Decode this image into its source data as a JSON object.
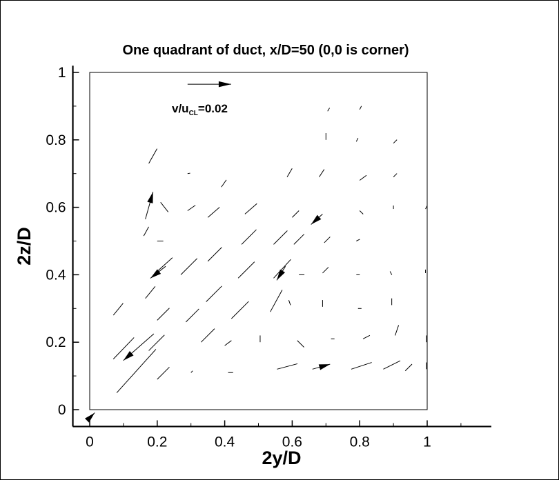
{
  "chart_data": {
    "type": "vector",
    "title": "One quadrant of duct, x/D=50 (0,0 is corner)",
    "xlabel": "2y/D",
    "ylabel": "2z/D",
    "xlim": [
      -0.05,
      1.19
    ],
    "ylim": [
      -0.05,
      1.02
    ],
    "frame_box": [
      0,
      1,
      0,
      1
    ],
    "x_ticks": [
      0,
      0.2,
      0.4,
      0.6,
      0.8,
      1
    ],
    "x_tick_labels": [
      "0",
      "0.2",
      "0.4",
      "0.6",
      "0.8",
      "1"
    ],
    "y_ticks": [
      0,
      0.2,
      0.4,
      0.6,
      0.8,
      1
    ],
    "y_tick_labels": [
      "0",
      "0.2",
      "0.4",
      "0.6",
      "0.8",
      "1"
    ],
    "reference_vector": {
      "label": "v/u",
      "label_sub": "CL",
      "label_suffix": "=0.02",
      "magnitude": 0.02,
      "x": 0.29,
      "y": 0.965
    },
    "scale_units_per_velocity": 6.45,
    "vectors": [
      {
        "x": 0.002,
        "y": -0.022,
        "u": 0.002,
        "w": 0.002,
        "head": true
      },
      {
        "x": 0.07,
        "y": 0.15,
        "u": 0.0095,
        "w": 0.0099,
        "head": false
      },
      {
        "x": 0.07,
        "y": 0.28,
        "u": 0.0045,
        "w": 0.0055,
        "head": false
      },
      {
        "x": 0.08,
        "y": 0.05,
        "u": 0.018,
        "w": 0.02,
        "head": false
      },
      {
        "x": 0.165,
        "y": 0.33,
        "u": 0.0045,
        "w": 0.0055,
        "head": false
      },
      {
        "x": 0.16,
        "y": 0.515,
        "u": 0.0023,
        "w": 0.0042,
        "head": false
      },
      {
        "x": 0.165,
        "y": 0.565,
        "u": 0.0035,
        "w": 0.0125,
        "head": true
      },
      {
        "x": 0.175,
        "y": 0.73,
        "u": 0.0038,
        "w": 0.0068,
        "head": false
      },
      {
        "x": 0.175,
        "y": 0.175,
        "u": 0.0072,
        "w": 0.0072,
        "head": false
      },
      {
        "x": 0.19,
        "y": 0.225,
        "u": -0.014,
        "w": -0.0123,
        "head": true
      },
      {
        "x": 0.2,
        "y": 0.09,
        "u": 0.0056,
        "w": 0.0056,
        "head": false
      },
      {
        "x": 0.2,
        "y": 0.41,
        "u": 0.007,
        "w": 0.0063,
        "head": false
      },
      {
        "x": 0.2,
        "y": 0.265,
        "u": 0.0056,
        "w": 0.0056,
        "head": false
      },
      {
        "x": 0.2,
        "y": 0.5,
        "u": 0.0028,
        "w": 0.0,
        "head": false
      },
      {
        "x": 0.21,
        "y": 0.615,
        "u": 0.0035,
        "w": -0.0045,
        "head": false
      },
      {
        "x": 0.225,
        "y": 0.425,
        "u": -0.007,
        "w": -0.0055,
        "head": true
      },
      {
        "x": 0.27,
        "y": 0.4,
        "u": 0.0075,
        "w": 0.0075,
        "head": false
      },
      {
        "x": 0.285,
        "y": 0.26,
        "u": 0.006,
        "w": 0.006,
        "head": false
      },
      {
        "x": 0.29,
        "y": 0.7,
        "u": 0.0012,
        "w": 0.0002,
        "head": false
      },
      {
        "x": 0.29,
        "y": 0.59,
        "u": 0.0036,
        "w": 0.0025,
        "head": false
      },
      {
        "x": 0.3,
        "y": 0.11,
        "u": 0.0008,
        "w": 0.0008,
        "head": false
      },
      {
        "x": 0.33,
        "y": 0.2,
        "u": 0.0062,
        "w": 0.0062,
        "head": false
      },
      {
        "x": 0.345,
        "y": 0.32,
        "u": 0.0072,
        "w": 0.0072,
        "head": false
      },
      {
        "x": 0.35,
        "y": 0.44,
        "u": 0.0064,
        "w": 0.0064,
        "head": false
      },
      {
        "x": 0.35,
        "y": 0.57,
        "u": 0.0054,
        "w": 0.0047,
        "head": false
      },
      {
        "x": 0.39,
        "y": 0.66,
        "u": 0.0023,
        "w": 0.0033,
        "head": false
      },
      {
        "x": 0.41,
        "y": 0.11,
        "u": 0.0023,
        "w": 0.0,
        "head": false
      },
      {
        "x": 0.4,
        "y": 0.19,
        "u": 0.0031,
        "w": 0.0023,
        "head": false
      },
      {
        "x": 0.44,
        "y": 0.39,
        "u": 0.0075,
        "w": 0.0075,
        "head": false
      },
      {
        "x": 0.42,
        "y": 0.27,
        "u": 0.0079,
        "w": 0.0079,
        "head": false
      },
      {
        "x": 0.45,
        "y": 0.49,
        "u": 0.0068,
        "w": 0.0068,
        "head": false
      },
      {
        "x": 0.46,
        "y": 0.58,
        "u": 0.0055,
        "w": 0.0048,
        "head": false
      },
      {
        "x": 0.505,
        "y": 0.2,
        "u": 0.0,
        "w": 0.0031,
        "head": false
      },
      {
        "x": 0.535,
        "y": 0.29,
        "u": 0.0055,
        "w": 0.0101,
        "head": false
      },
      {
        "x": 0.545,
        "y": 0.39,
        "u": 0.0079,
        "w": 0.0086,
        "head": false
      },
      {
        "x": 0.545,
        "y": 0.49,
        "u": 0.0063,
        "w": 0.0063,
        "head": false
      },
      {
        "x": 0.555,
        "y": 0.12,
        "u": 0.0094,
        "w": 0.0025,
        "head": false
      },
      {
        "x": 0.58,
        "y": 0.425,
        "u": -0.004,
        "w": -0.0064,
        "head": true
      },
      {
        "x": 0.585,
        "y": 0.69,
        "u": 0.0023,
        "w": 0.0039,
        "head": false
      },
      {
        "x": 0.6,
        "y": 0.57,
        "u": 0.0031,
        "w": 0.0031,
        "head": false
      },
      {
        "x": 0.605,
        "y": 0.49,
        "u": 0.0047,
        "w": 0.0047,
        "head": false
      },
      {
        "x": 0.62,
        "y": 0.4,
        "u": 0.0025,
        "w": 0.0,
        "head": false
      },
      {
        "x": 0.595,
        "y": 0.31,
        "u": -0.0008,
        "w": 0.0023,
        "head": false
      },
      {
        "x": 0.615,
        "y": 0.205,
        "u": 0.0031,
        "w": -0.0031,
        "head": false
      },
      {
        "x": 0.66,
        "y": 0.12,
        "u": 0.0081,
        "w": 0.0023,
        "head": true
      },
      {
        "x": 0.69,
        "y": 0.58,
        "u": -0.0053,
        "w": -0.0048,
        "head": true
      },
      {
        "x": 0.68,
        "y": 0.69,
        "u": 0.0023,
        "w": 0.0035,
        "head": false
      },
      {
        "x": 0.69,
        "y": 0.405,
        "u": 0.0027,
        "w": 0.0027,
        "head": false
      },
      {
        "x": 0.695,
        "y": 0.495,
        "u": 0.0027,
        "w": 0.0027,
        "head": false
      },
      {
        "x": 0.69,
        "y": 0.305,
        "u": 0.0,
        "w": 0.0031,
        "head": false
      },
      {
        "x": 0.7,
        "y": 0.8,
        "u": 0.0,
        "w": 0.0031,
        "head": false
      },
      {
        "x": 0.705,
        "y": 0.885,
        "u": 0.0009,
        "w": 0.0015,
        "head": false
      },
      {
        "x": 0.715,
        "y": 0.21,
        "u": 0.0016,
        "w": 0.0,
        "head": false
      },
      {
        "x": 0.775,
        "y": 0.12,
        "u": 0.0094,
        "w": 0.0031,
        "head": false
      },
      {
        "x": 0.79,
        "y": 0.5,
        "u": 0.0016,
        "w": 0.0008,
        "head": false
      },
      {
        "x": 0.79,
        "y": 0.4,
        "u": 0.0016,
        "w": 0.0,
        "head": false
      },
      {
        "x": 0.795,
        "y": 0.3,
        "u": 0.0016,
        "w": 0.0,
        "head": false
      },
      {
        "x": 0.8,
        "y": 0.59,
        "u": 0.0016,
        "w": -0.0016,
        "head": false
      },
      {
        "x": 0.8,
        "y": 0.68,
        "u": 0.0031,
        "w": 0.0023,
        "head": false
      },
      {
        "x": 0.79,
        "y": 0.795,
        "u": 0.0008,
        "w": 0.0016,
        "head": false
      },
      {
        "x": 0.8,
        "y": 0.89,
        "u": 0.0008,
        "w": 0.0016,
        "head": false
      },
      {
        "x": 0.81,
        "y": 0.21,
        "u": 0.0031,
        "w": 0.0016,
        "head": false
      },
      {
        "x": 0.87,
        "y": 0.12,
        "u": 0.0078,
        "w": 0.0039,
        "head": false
      },
      {
        "x": 0.89,
        "y": 0.41,
        "u": 0.0008,
        "w": -0.0016,
        "head": false
      },
      {
        "x": 0.895,
        "y": 0.31,
        "u": 0.0,
        "w": 0.0031,
        "head": false
      },
      {
        "x": 0.9,
        "y": 0.595,
        "u": 0.0,
        "w": 0.0016,
        "head": false
      },
      {
        "x": 0.9,
        "y": 0.69,
        "u": 0.0016,
        "w": 0.0016,
        "head": false
      },
      {
        "x": 0.9,
        "y": 0.79,
        "u": 0.0016,
        "w": 0.0016,
        "head": false
      },
      {
        "x": 0.905,
        "y": 0.22,
        "u": 0.0016,
        "w": 0.0047,
        "head": false
      },
      {
        "x": 0.935,
        "y": 0.115,
        "u": 0.0031,
        "w": 0.0031,
        "head": false
      },
      {
        "x": 0.995,
        "y": 0.595,
        "u": 0.0008,
        "w": 0.0016,
        "head": false
      },
      {
        "x": 0.995,
        "y": 0.405,
        "u": 0.0,
        "w": 0.0016,
        "head": false
      },
      {
        "x": 1.0,
        "y": 0.3,
        "u": 0.0,
        "w": 0.0016,
        "head": false
      },
      {
        "x": 0.998,
        "y": 0.2,
        "u": 0.0,
        "w": 0.0031,
        "head": false
      },
      {
        "x": 0.998,
        "y": 0.12,
        "u": 0.0,
        "w": 0.0031,
        "head": false
      }
    ]
  }
}
